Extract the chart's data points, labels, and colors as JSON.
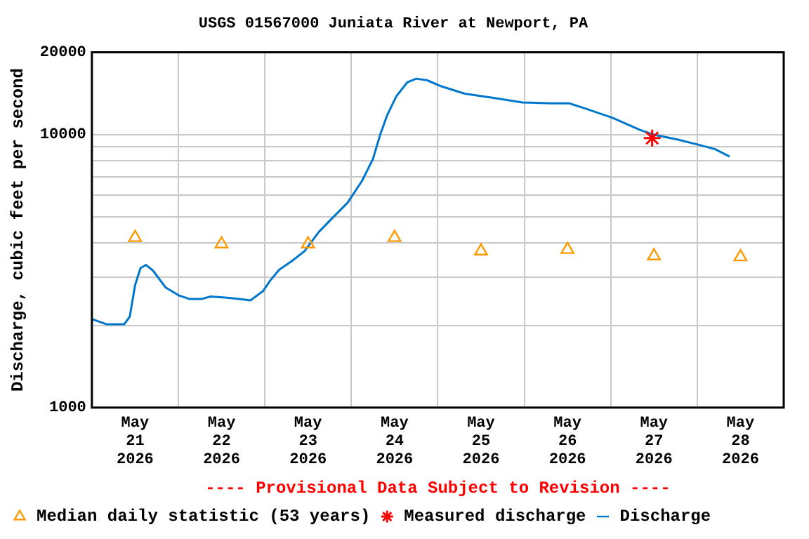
{
  "chart_data": {
    "type": "line",
    "title": "USGS 01567000 Juniata River at Newport, PA",
    "ylabel": "Discharge, cubic feet per second",
    "annotations": [
      "---- Provisional Data Subject to Revision ----"
    ],
    "log": "y",
    "grid": true,
    "legend": "bottom left",
    "xlim": [
      "2026-05-21T00:00",
      "2026-05-29T00:00"
    ],
    "xticks": [
      {
        "value": "2026-05-21T12:00",
        "label": "May 21 2026"
      },
      {
        "value": "2026-05-22T00:00",
        "label": null
      },
      {
        "value": "2026-05-22T12:00",
        "label": "May 22 2026"
      },
      {
        "value": "2026-05-23T00:00",
        "label": null
      },
      {
        "value": "2026-05-23T12:00",
        "label": "May 23 2026"
      },
      {
        "value": "2026-05-24T00:00",
        "label": null
      },
      {
        "value": "2026-05-24T12:00",
        "label": "May 24 2026"
      },
      {
        "value": "2026-05-25T00:00",
        "label": null
      },
      {
        "value": "2026-05-25T12:00",
        "label": "May 25 2026"
      },
      {
        "value": "2026-05-26T00:00",
        "label": null
      },
      {
        "value": "2026-05-26T12:00",
        "label": "May 26 2026"
      },
      {
        "value": "2026-05-27T00:00",
        "label": null
      },
      {
        "value": "2026-05-27T12:00",
        "label": "May 27 2026"
      },
      {
        "value": "2026-05-28T00:00",
        "label": null
      },
      {
        "value": "2026-05-28T12:00",
        "label": "May 28 2026"
      }
    ],
    "ylim": [
      1000,
      20000
    ],
    "yticks": [
      1000,
      {
        "value": 2000,
        "label": null
      },
      {
        "value": 3000,
        "label": null
      },
      {
        "value": 4000,
        "label": null
      },
      {
        "value": 5000,
        "label": null
      },
      {
        "value": 6000,
        "label": null
      },
      {
        "value": 7000,
        "label": null
      },
      {
        "value": 8000,
        "label": null
      },
      {
        "value": 9000,
        "label": null
      },
      10000,
      20000
    ],
    "series": [
      {
        "name": "Median daily statistic (53 years)",
        "type": "scatter",
        "marker": "triangle",
        "color": "#ff9900",
        "x": [
          "2026-05-21T12:00",
          "2026-05-22T12:00",
          "2026-05-23T12:00",
          "2026-05-24T12:00",
          "2026-05-25T12:00",
          "2026-05-26T12:00",
          "2026-05-27T12:00",
          "2026-05-28T12:00"
        ],
        "values": [
          4190,
          3970,
          3970,
          4190,
          3740,
          3790,
          3590,
          3560
        ]
      },
      {
        "name": "Measured discharge",
        "type": "scatter",
        "marker": "cross",
        "color": "#ff0000",
        "x": [
          "2026-05-27T11:30"
        ],
        "values": [
          9700
        ]
      },
      {
        "name": "Discharge",
        "marker": "none",
        "color": "#0077cc",
        "x": [
          "2026-05-21T00:00",
          "2026-05-21T04:00",
          "2026-05-21T09:00",
          "2026-05-21T10:30",
          "2026-05-21T12:00",
          "2026-05-21T13:30",
          "2026-05-21T15:00",
          "2026-05-21T17:00",
          "2026-05-21T20:30",
          "2026-05-22T00:00",
          "2026-05-22T03:00",
          "2026-05-22T06:30",
          "2026-05-22T09:00",
          "2026-05-22T13:00",
          "2026-05-22T17:00",
          "2026-05-22T20:00",
          "2026-05-22T23:30",
          "2026-05-23T01:30",
          "2026-05-23T04:00",
          "2026-05-23T07:30",
          "2026-05-23T11:00",
          "2026-05-23T15:00",
          "2026-05-23T19:00",
          "2026-05-23T23:00",
          "2026-05-24T03:00",
          "2026-05-24T06:00",
          "2026-05-24T08:00",
          "2026-05-24T10:00",
          "2026-05-24T12:30",
          "2026-05-24T15:30",
          "2026-05-24T18:00",
          "2026-05-24T21:00",
          "2026-05-25T01:00",
          "2026-05-25T07:30",
          "2026-05-25T15:30",
          "2026-05-25T23:30",
          "2026-05-26T07:30",
          "2026-05-26T12:30",
          "2026-05-26T16:30",
          "2026-05-27T00:30",
          "2026-05-27T08:00",
          "2026-05-27T12:00",
          "2026-05-27T18:30",
          "2026-05-28T01:00",
          "2026-05-28T05:00",
          "2026-05-28T09:00"
        ],
        "values": [
          2110,
          2020,
          2020,
          2150,
          2810,
          3240,
          3330,
          3170,
          2750,
          2580,
          2500,
          2500,
          2550,
          2530,
          2500,
          2470,
          2670,
          2920,
          3200,
          3440,
          3740,
          4400,
          4980,
          5630,
          6770,
          8130,
          9970,
          11800,
          13800,
          15500,
          16000,
          15800,
          15000,
          14100,
          13600,
          13100,
          13000,
          13000,
          12500,
          11500,
          10400,
          9970,
          9580,
          9120,
          8830,
          8300
        ]
      }
    ]
  }
}
